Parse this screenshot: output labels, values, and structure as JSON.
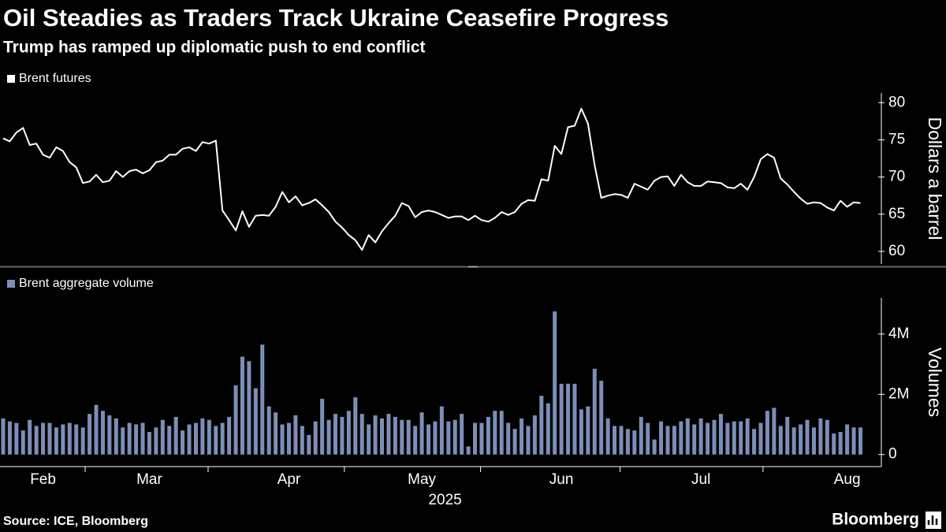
{
  "chart_data": [
    {
      "type": "line",
      "title": "Oil Steadies as Traders Track Ukraine Ceasefire Progress",
      "subtitle": "Trump has ramped up diplomatic push to end conflict",
      "ylabel": "Dollars a barrel",
      "ylim": [
        58.3,
        81.3
      ],
      "yticks": [
        60,
        65,
        70,
        75,
        80
      ],
      "series": [
        {
          "name": "Brent futures",
          "color": "#ffffff",
          "values": [
            75.2,
            74.8,
            76,
            76.6,
            74.3,
            74.5,
            73,
            72.6,
            74,
            73.5,
            72,
            71.3,
            69.2,
            69.4,
            70.3,
            69.3,
            69.5,
            70.8,
            70,
            70.8,
            71,
            70.5,
            70.9,
            72,
            72.2,
            73,
            73,
            73.8,
            74,
            73.5,
            74.7,
            74.5,
            74.9,
            65.5,
            64.2,
            62.8,
            65.4,
            63.3,
            64.8,
            64.9,
            64.8,
            66,
            68,
            66.6,
            67.4,
            66.2,
            66.5,
            67,
            66.2,
            65.3,
            64,
            63.2,
            62.2,
            61.5,
            60.2,
            62.2,
            61.2,
            62.7,
            63.8,
            64.8,
            66.5,
            66.1,
            64.6,
            65.3,
            65.5,
            65.3,
            64.9,
            64.5,
            64.7,
            64.7,
            64.2,
            64.8,
            64.2,
            64,
            64.5,
            65.3,
            64.9,
            65.3,
            66.4,
            66.9,
            66.8,
            69.7,
            69.5,
            74.2,
            73.1,
            76.7,
            76.9,
            79.2,
            77.2,
            71.6,
            67.2,
            67.5,
            67.7,
            67.6,
            67.2,
            69.1,
            68.7,
            68.3,
            69.5,
            70,
            70.1,
            68.8,
            70.3,
            69.3,
            68.8,
            68.8,
            69.4,
            69.3,
            69.2,
            68.6,
            68.5,
            69.1,
            68.3,
            70,
            72.4,
            73.1,
            72.6,
            69.8,
            69,
            68,
            67.1,
            66.4,
            66.6,
            66.5,
            65.9,
            65.5,
            66.8,
            66,
            66.6,
            66.5
          ]
        }
      ]
    },
    {
      "type": "bar",
      "ylabel": "Volumes",
      "xlabel": "2025",
      "ylim": [
        -400000,
        5200000
      ],
      "yticks": [
        0,
        {
          "value": 2000000,
          "label": "2M"
        },
        {
          "value": 4000000,
          "label": "4M"
        }
      ],
      "categories": [
        null,
        null,
        null,
        null,
        null,
        null,
        "Feb",
        null,
        null,
        null,
        null,
        null,
        null,
        null,
        null,
        null,
        null,
        null,
        null,
        null,
        null,
        null,
        "Mar",
        null,
        null,
        null,
        null,
        null,
        null,
        null,
        null,
        null,
        null,
        null,
        null,
        null,
        null,
        null,
        null,
        null,
        null,
        null,
        null,
        "Apr",
        null,
        null,
        null,
        null,
        null,
        null,
        null,
        null,
        null,
        null,
        null,
        null,
        null,
        null,
        null,
        null,
        null,
        null,
        null,
        "May",
        null,
        null,
        null,
        null,
        null,
        null,
        null,
        null,
        null,
        null,
        null,
        null,
        null,
        null,
        null,
        null,
        null,
        null,
        null,
        null,
        "Jun",
        null,
        null,
        null,
        null,
        null,
        null,
        null,
        null,
        null,
        null,
        null,
        null,
        null,
        null,
        null,
        null,
        null,
        null,
        null,
        null,
        "Jul",
        null,
        null,
        null,
        null,
        null,
        null,
        null,
        null,
        null,
        null,
        null,
        null,
        null,
        null,
        null,
        null,
        null,
        null,
        null,
        null,
        null,
        "Aug",
        null,
        null
      ],
      "series": [
        {
          "name": "Brent aggregate volume",
          "color": "#7b8fb8",
          "values": [
            1200000,
            1100000,
            1050000,
            800000,
            1150000,
            950000,
            1050000,
            1050000,
            900000,
            1000000,
            1050000,
            1000000,
            900000,
            1350000,
            1650000,
            1450000,
            1300000,
            1200000,
            900000,
            1050000,
            1000000,
            1050000,
            750000,
            900000,
            1150000,
            950000,
            1250000,
            800000,
            1000000,
            1050000,
            1200000,
            1150000,
            950000,
            1050000,
            1250000,
            2300000,
            3250000,
            3100000,
            2200000,
            3650000,
            1600000,
            1400000,
            1000000,
            1050000,
            1300000,
            950000,
            650000,
            1100000,
            1850000,
            1150000,
            1350000,
            1250000,
            1450000,
            1900000,
            1350000,
            1000000,
            1300000,
            1200000,
            1350000,
            1250000,
            1150000,
            1150000,
            950000,
            1400000,
            1000000,
            1100000,
            1600000,
            1100000,
            1150000,
            1350000,
            270000,
            1050000,
            1050000,
            1250000,
            1450000,
            1450000,
            1050000,
            850000,
            1200000,
            950000,
            1300000,
            1950000,
            1700000,
            4750000,
            2350000,
            2350000,
            2350000,
            1500000,
            1600000,
            2850000,
            2450000,
            1200000,
            950000,
            950000,
            850000,
            800000,
            1250000,
            1050000,
            500000,
            1100000,
            950000,
            950000,
            1100000,
            1200000,
            1000000,
            1200000,
            1050000,
            1150000,
            1350000,
            1050000,
            1100000,
            1100000,
            1200000,
            850000,
            1050000,
            1450000,
            1550000,
            950000,
            1250000,
            900000,
            1000000,
            1150000,
            900000,
            1200000,
            1150000,
            700000,
            750000,
            1000000,
            900000,
            900000
          ]
        }
      ]
    }
  ],
  "source": "Source: ICE, Bloomberg",
  "brand": "Bloomberg"
}
